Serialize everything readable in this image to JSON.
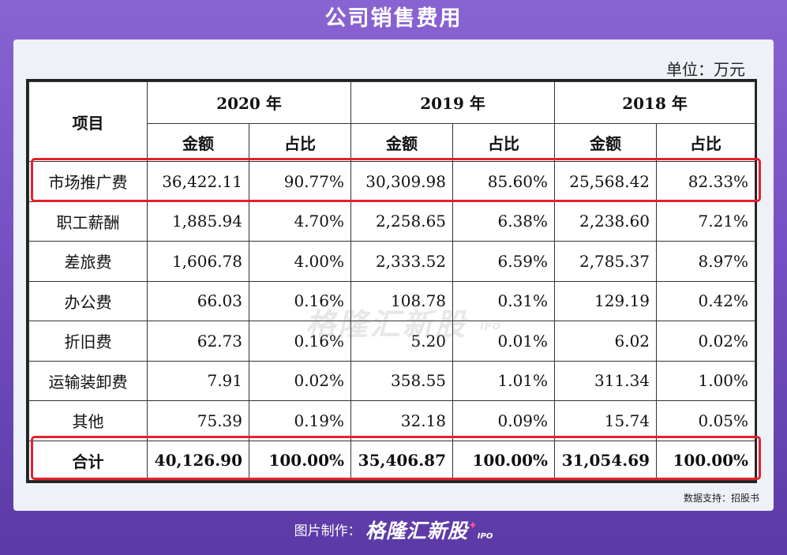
{
  "title": "公司销售费用",
  "unit": "单位：万元",
  "table": {
    "item_header": "项目",
    "years": [
      "2020 年",
      "2019 年",
      "2018 年"
    ],
    "sub_headers": [
      "金额",
      "占比"
    ],
    "rows": [
      {
        "name": "市场推广费",
        "values": [
          "36,422.11",
          "90.77%",
          "30,309.98",
          "85.60%",
          "25,568.42",
          "82.33%"
        ]
      },
      {
        "name": "职工薪酬",
        "values": [
          "1,885.94",
          "4.70%",
          "2,258.65",
          "6.38%",
          "2,238.60",
          "7.21%"
        ]
      },
      {
        "name": "差旅费",
        "values": [
          "1,606.78",
          "4.00%",
          "2,333.52",
          "6.59%",
          "2,785.37",
          "8.97%"
        ]
      },
      {
        "name": "办公费",
        "values": [
          "66.03",
          "0.16%",
          "108.78",
          "0.31%",
          "129.19",
          "0.42%"
        ]
      },
      {
        "name": "折旧费",
        "values": [
          "62.73",
          "0.16%",
          "5.20",
          "0.01%",
          "6.02",
          "0.02%"
        ]
      },
      {
        "name": "运输装卸费",
        "values": [
          "7.91",
          "0.02%",
          "358.55",
          "1.01%",
          "311.34",
          "1.00%"
        ]
      },
      {
        "name": "其他",
        "values": [
          "75.39",
          "0.19%",
          "32.18",
          "0.09%",
          "15.74",
          "0.05%"
        ]
      }
    ],
    "total": {
      "name": "合计",
      "values": [
        "40,126.90",
        "100.00%",
        "35,406.87",
        "100.00%",
        "31,054.69",
        "100.00%"
      ]
    }
  },
  "watermark": {
    "text": "格隆汇新股",
    "sub": "IPO"
  },
  "source": "数据支持：招股书",
  "footer": {
    "label": "图片制作：",
    "brand": "格隆汇新股",
    "brand_sub": "IPO"
  },
  "colors": {
    "highlight": "#e3212b",
    "background": "#7550c4"
  }
}
